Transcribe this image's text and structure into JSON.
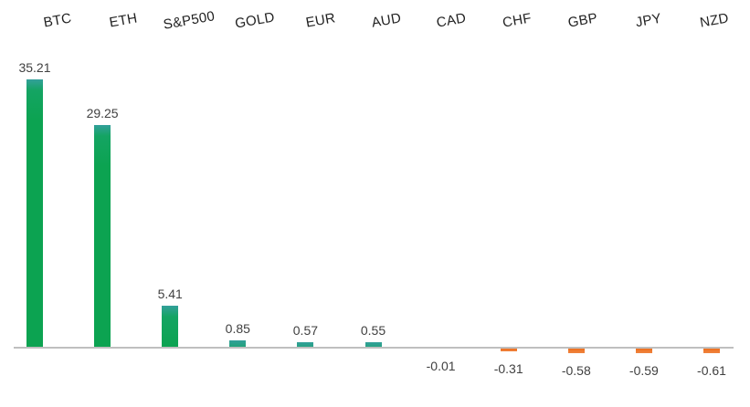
{
  "chart_data": {
    "type": "bar",
    "title": "",
    "xlabel": "",
    "ylabel": "",
    "categories": [
      "BTC",
      "ETH",
      "S&P500",
      "GOLD",
      "EUR",
      "AUD",
      "CAD",
      "CHF",
      "GBP",
      "JPY",
      "NZD"
    ],
    "values": [
      35.21,
      29.25,
      5.41,
      0.85,
      0.57,
      0.55,
      -0.01,
      -0.31,
      -0.58,
      -0.59,
      -0.61
    ],
    "value_labels": [
      "35.21",
      "29.25",
      "5.41",
      "0.85",
      "0.57",
      "0.55",
      "-0.01",
      "-0.31",
      "-0.58",
      "-0.59",
      "-0.61"
    ],
    "ylim": [
      -5,
      38
    ],
    "grid": "off",
    "legend": "none",
    "axis": "baseline-only",
    "category_label_position": "top",
    "category_label_rotation_deg": -10,
    "colors": {
      "positive_bar": "#0ca351",
      "positive_bar_top": "#33a09b",
      "negative_bar": "#ed7631",
      "baseline": "#bfbfbf",
      "value_label": "#404040",
      "category_label": "#1f1f1f",
      "background": "#ffffff"
    }
  }
}
